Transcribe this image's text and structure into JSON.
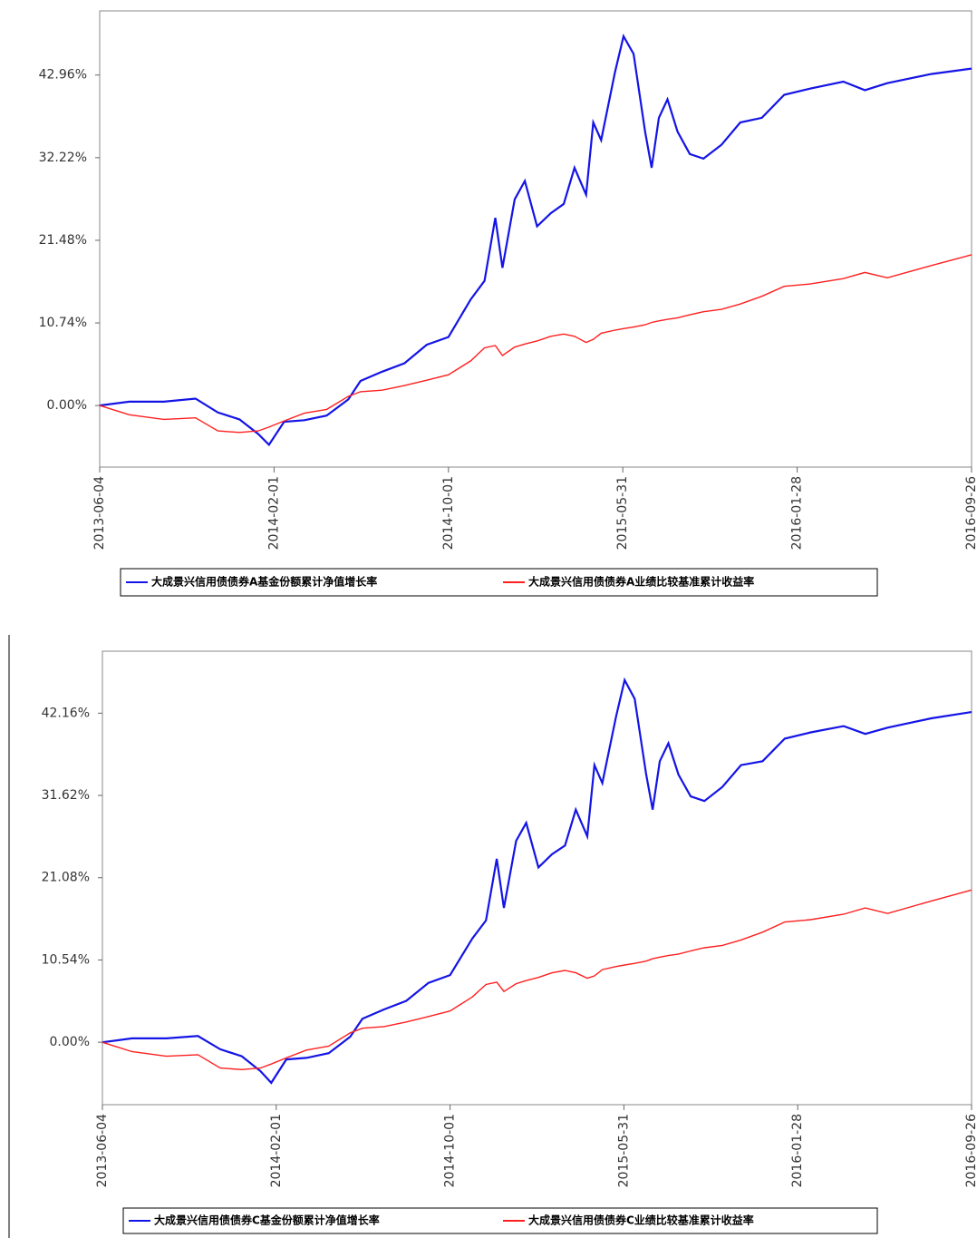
{
  "chart_data": [
    {
      "type": "line",
      "x": [
        "2013-06-04",
        "2013-07-15",
        "2013-09-01",
        "2013-10-15",
        "2013-11-15",
        "2013-12-15",
        "2014-01-10",
        "2014-01-25",
        "2014-02-15",
        "2014-03-15",
        "2014-04-15",
        "2014-05-15",
        "2014-06-01",
        "2014-07-01",
        "2014-08-01",
        "2014-09-01",
        "2014-10-01",
        "2014-11-01",
        "2014-11-20",
        "2014-12-05",
        "2014-12-15",
        "2015-01-01",
        "2015-01-15",
        "2015-02-01",
        "2015-02-20",
        "2015-03-10",
        "2015-03-25",
        "2015-04-10",
        "2015-04-20",
        "2015-05-01",
        "2015-05-20",
        "2015-06-01",
        "2015-06-15",
        "2015-07-01",
        "2015-07-10",
        "2015-07-20",
        "2015-08-01",
        "2015-08-15",
        "2015-09-01",
        "2015-09-20",
        "2015-10-15",
        "2015-11-10",
        "2015-12-10",
        "2016-01-10",
        "2016-02-15",
        "2016-04-01",
        "2016-05-01",
        "2016-06-01",
        "2016-08-01",
        "2016-09-26"
      ],
      "series": [
        {
          "name": "大成景兴信用债债券A基金份额累计净值增长率",
          "color": "#1414e6",
          "values": [
            0,
            0.5,
            0.5,
            0.9,
            -0.9,
            -1.8,
            -3.7,
            -5.1,
            -2.1,
            -1.9,
            -1.3,
            0.8,
            3.2,
            4.4,
            5.5,
            7.9,
            8.9,
            13.8,
            16.2,
            24.4,
            17.9,
            26.8,
            29.2,
            23.3,
            25.0,
            26.2,
            30.9,
            27.4,
            36.8,
            34.5,
            43.3,
            48.0,
            45.7,
            35.6,
            30.9,
            37.4,
            39.8,
            35.6,
            32.7,
            32.1,
            33.9,
            36.8,
            37.4,
            40.4,
            41.2,
            42.1,
            41.0,
            41.9,
            43.1,
            43.8
          ]
        },
        {
          "name": "大成景兴信用债债券A业绩比较基准累计收益率",
          "color": "#ff2020",
          "values": [
            0,
            -1.2,
            -1.8,
            -1.6,
            -3.3,
            -3.5,
            -3.3,
            -2.8,
            -2.0,
            -1.0,
            -0.5,
            1.2,
            1.8,
            2.0,
            2.6,
            3.3,
            4.0,
            5.8,
            7.5,
            7.8,
            6.5,
            7.6,
            8.0,
            8.4,
            9.0,
            9.3,
            9.0,
            8.2,
            8.6,
            9.4,
            9.8,
            10.0,
            10.2,
            10.5,
            10.8,
            11.0,
            11.2,
            11.4,
            11.8,
            12.2,
            12.5,
            13.2,
            14.2,
            15.5,
            15.8,
            16.5,
            17.3,
            16.6,
            18.2,
            19.6
          ]
        }
      ],
      "xlim": [
        "2013-06-04",
        "2016-09-26"
      ],
      "xticks": [
        "2013-06-04",
        "2014-02-01",
        "2014-10-01",
        "2015-05-31",
        "2016-01-28",
        "2016-09-26"
      ],
      "ylim": [
        -8.0,
        51.3
      ],
      "yticks": [
        {
          "value": 0,
          "label": "0.00%"
        },
        {
          "value": 10.74,
          "label": "10.74%"
        },
        {
          "value": 21.48,
          "label": "21.48%"
        },
        {
          "value": 32.22,
          "label": "32.22%"
        },
        {
          "value": 42.96,
          "label": "42.96%"
        }
      ]
    },
    {
      "type": "line",
      "x": [
        "2013-06-04",
        "2013-07-15",
        "2013-09-01",
        "2013-10-15",
        "2013-11-15",
        "2013-12-15",
        "2014-01-10",
        "2014-01-25",
        "2014-02-15",
        "2014-03-15",
        "2014-04-15",
        "2014-05-15",
        "2014-06-01",
        "2014-07-01",
        "2014-08-01",
        "2014-09-01",
        "2014-10-01",
        "2014-11-01",
        "2014-11-20",
        "2014-12-05",
        "2014-12-15",
        "2015-01-01",
        "2015-01-15",
        "2015-02-01",
        "2015-02-20",
        "2015-03-10",
        "2015-03-25",
        "2015-04-10",
        "2015-04-20",
        "2015-05-01",
        "2015-05-20",
        "2015-06-01",
        "2015-06-15",
        "2015-07-01",
        "2015-07-10",
        "2015-07-20",
        "2015-08-01",
        "2015-08-15",
        "2015-09-01",
        "2015-09-20",
        "2015-10-15",
        "2015-11-10",
        "2015-12-10",
        "2016-01-10",
        "2016-02-15",
        "2016-04-01",
        "2016-05-01",
        "2016-06-01",
        "2016-08-01",
        "2016-09-26"
      ],
      "series": [
        {
          "name": "大成景兴信用债债券C基金份额累计净值增长率",
          "color": "#1414e6",
          "values": [
            0,
            0.5,
            0.5,
            0.8,
            -0.9,
            -1.8,
            -3.7,
            -5.2,
            -2.2,
            -2.0,
            -1.4,
            0.7,
            3.0,
            4.2,
            5.3,
            7.6,
            8.6,
            13.3,
            15.6,
            23.5,
            17.2,
            25.8,
            28.1,
            22.4,
            24.1,
            25.2,
            29.8,
            26.4,
            35.5,
            33.2,
            41.7,
            46.4,
            44.0,
            34.3,
            29.8,
            36.0,
            38.3,
            34.3,
            31.5,
            30.9,
            32.7,
            35.5,
            36.0,
            38.9,
            39.7,
            40.5,
            39.5,
            40.3,
            41.5,
            42.3
          ]
        },
        {
          "name": "大成景兴信用债债券C业绩比较基准累计收益率",
          "color": "#ff2020",
          "values": [
            0,
            -1.2,
            -1.8,
            -1.6,
            -3.3,
            -3.5,
            -3.3,
            -2.8,
            -2.0,
            -1.0,
            -0.5,
            1.2,
            1.8,
            2.0,
            2.6,
            3.3,
            4.0,
            5.8,
            7.4,
            7.7,
            6.5,
            7.5,
            7.9,
            8.3,
            8.9,
            9.2,
            8.9,
            8.2,
            8.5,
            9.3,
            9.7,
            9.9,
            10.1,
            10.4,
            10.7,
            10.9,
            11.1,
            11.3,
            11.7,
            12.1,
            12.4,
            13.1,
            14.1,
            15.4,
            15.7,
            16.4,
            17.2,
            16.5,
            18.1,
            19.5
          ]
        }
      ],
      "xlim": [
        "2013-06-04",
        "2016-09-26"
      ],
      "xticks": [
        "2013-06-04",
        "2014-02-01",
        "2014-10-01",
        "2015-05-31",
        "2016-01-28",
        "2016-09-26"
      ],
      "ylim": [
        -8.0,
        50.1
      ],
      "yticks": [
        {
          "value": 0,
          "label": "0.00%"
        },
        {
          "value": 10.54,
          "label": "10.54%"
        },
        {
          "value": 21.08,
          "label": "21.08%"
        },
        {
          "value": 31.62,
          "label": "31.62%"
        },
        {
          "value": 42.16,
          "label": "42.16%"
        }
      ]
    }
  ]
}
